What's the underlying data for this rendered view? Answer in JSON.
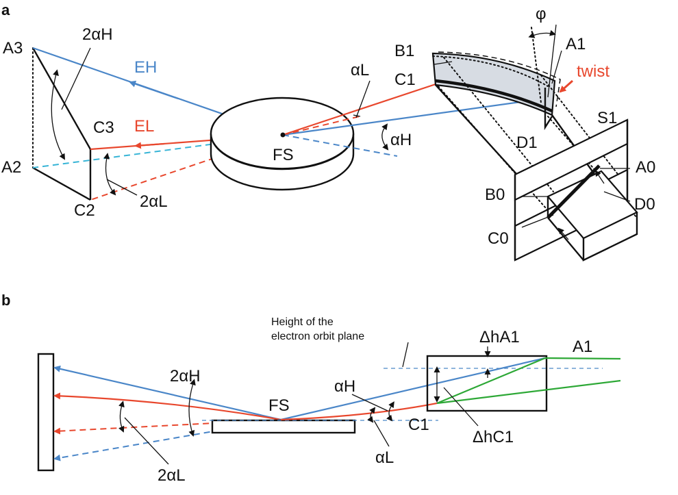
{
  "panels": {
    "a": "a",
    "b": "b"
  },
  "panel_a": {
    "A3": "A3",
    "A2": "A2",
    "C3": "C3",
    "C2": "C2",
    "EH": "EH",
    "EL": "EL",
    "two_alpha_H": "2αH",
    "two_alpha_L": "2αL",
    "FS": "FS",
    "alpha_L": "αL",
    "alpha_H": "αH",
    "B1": "B1",
    "C1": "C1",
    "A1": "A1",
    "D1": "D1",
    "phi": "φ",
    "twist": "twist",
    "S1": "S1",
    "A0": "A0",
    "B0": "B0",
    "C0": "C0",
    "D0": "D0"
  },
  "panel_b": {
    "note_line1": "Height of the",
    "note_line2": "electron orbit plane",
    "two_alpha_H": "2αH",
    "two_alpha_L": "2αL",
    "FS": "FS",
    "alpha_H": "αH",
    "alpha_L": "αL",
    "C1": "C1",
    "A1": "A1",
    "dh_A1": "ΔhA1",
    "dh_C1": "ΔhC1"
  },
  "colors": {
    "beam_high": "#4a86c8",
    "beam_low": "#e8472d",
    "beam_cyan": "#36b4d6",
    "orbit": "#2da836",
    "mirror_fill": "#d7dce3",
    "ink": "#111111"
  }
}
